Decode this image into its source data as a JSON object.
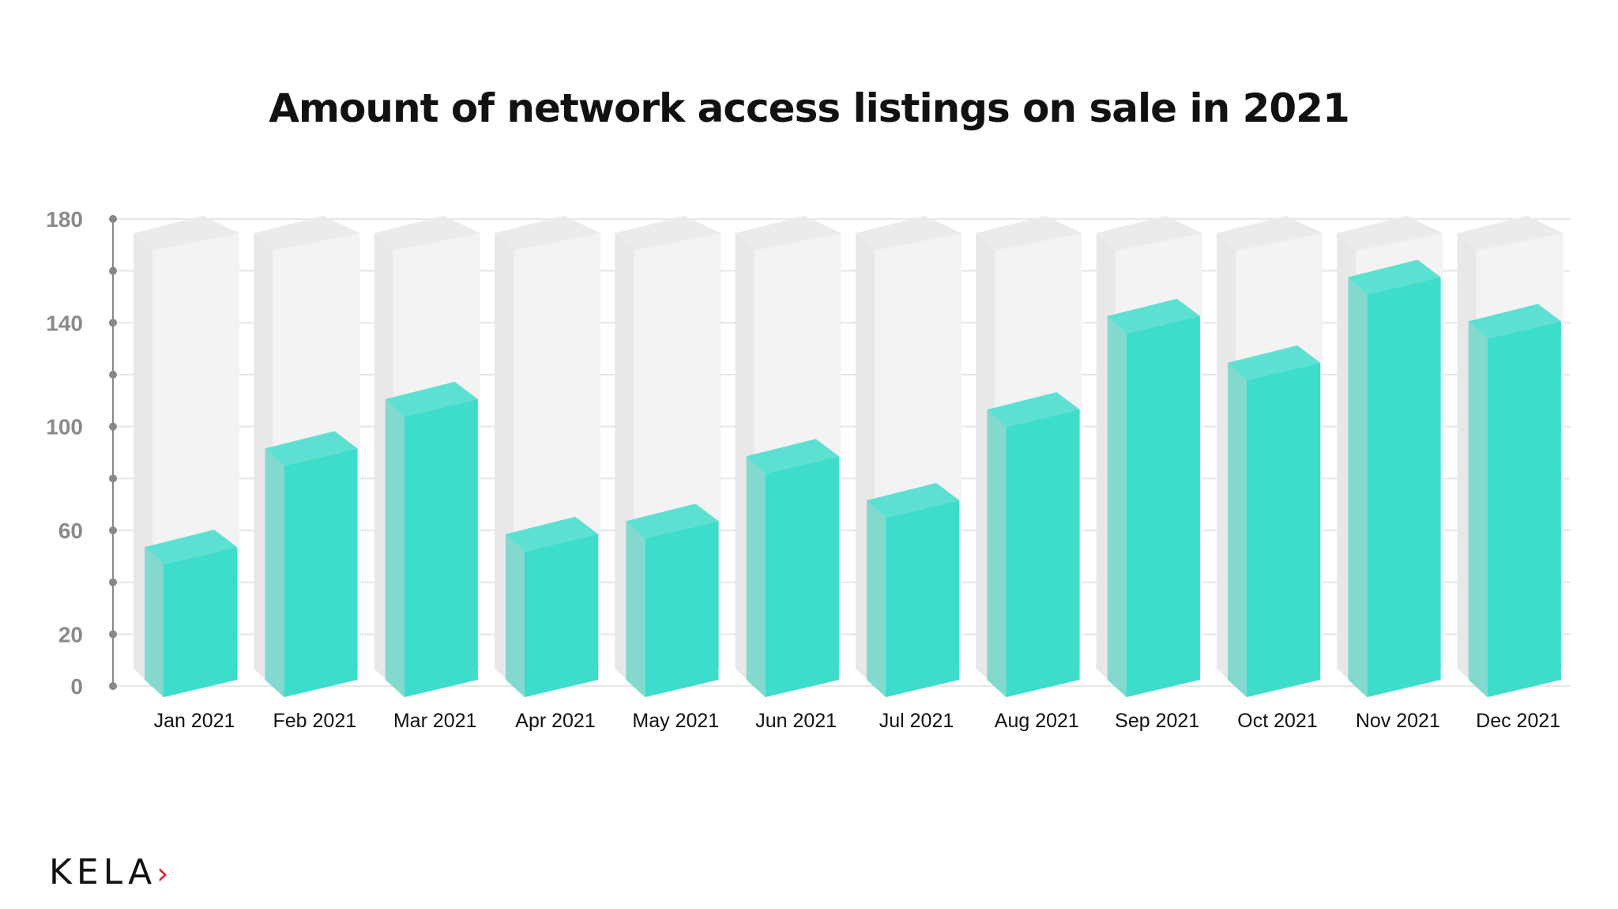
{
  "chart_data": {
    "type": "bar",
    "title": "Amount of network access listings on sale in 2021",
    "categories": [
      "Jan 2021",
      "Feb 2021",
      "Mar 2021",
      "Apr 2021",
      "May 2021",
      "Jun 2021",
      "Jul 2021",
      "Aug 2021",
      "Sep 2021",
      "Oct 2021",
      "Nov 2021",
      "Dec 2021"
    ],
    "values": [
      56,
      94,
      113,
      61,
      66,
      91,
      74,
      109,
      145,
      127,
      160,
      143
    ],
    "xlabel": "",
    "ylabel": "",
    "ylim": [
      0,
      180
    ],
    "yticks": [
      "0",
      "20",
      "60",
      "100",
      "140",
      "180"
    ],
    "grid": true,
    "style": "3d",
    "colors": {
      "bar": "#3ddccb",
      "bar_side": "#84d9cf",
      "bar_top": "#5ce0d2",
      "ghost": "#f3f3f3",
      "ghost_side": "#e8e8e8",
      "axis": "#888888"
    }
  },
  "logo": {
    "text": "KELA"
  }
}
